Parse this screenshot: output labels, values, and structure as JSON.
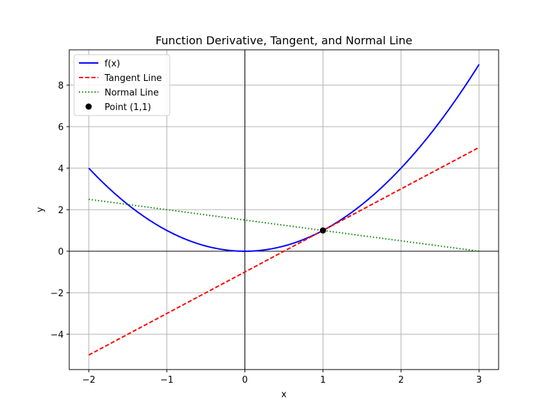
{
  "chart_data": {
    "type": "line",
    "title": "Function Derivative, Tangent, and Normal Line",
    "xlabel": "x",
    "ylabel": "y",
    "xlim": [
      -2.25,
      3.25
    ],
    "ylim": [
      -5.7,
      9.7
    ],
    "xticks": [
      -2,
      -1,
      0,
      1,
      2,
      3
    ],
    "xtick_labels": [
      "−2",
      "−1",
      "0",
      "1",
      "2",
      "3"
    ],
    "yticks": [
      -4,
      -2,
      0,
      2,
      4,
      6,
      8
    ],
    "ytick_labels": [
      "−4",
      "−2",
      "0",
      "2",
      "4",
      "6",
      "8"
    ],
    "grid": true,
    "legend_position": "upper-left",
    "series": [
      {
        "name": "f(x)",
        "kind": "line",
        "color": "#0000ff",
        "linestyle": "solid",
        "x": [
          -2.0,
          -1.75,
          -1.5,
          -1.25,
          -1.0,
          -0.75,
          -0.5,
          -0.25,
          0.0,
          0.25,
          0.5,
          0.75,
          1.0,
          1.25,
          1.5,
          1.75,
          2.0,
          2.25,
          2.5,
          2.75,
          3.0
        ],
        "y": [
          4.0,
          3.0625,
          2.25,
          1.5625,
          1.0,
          0.5625,
          0.25,
          0.0625,
          0.0,
          0.0625,
          0.25,
          0.5625,
          1.0,
          1.5625,
          2.25,
          3.0625,
          4.0,
          5.0625,
          6.25,
          7.5625,
          9.0
        ]
      },
      {
        "name": "Tangent Line",
        "kind": "line",
        "color": "#ff0000",
        "linestyle": "dashed",
        "x": [
          -2.0,
          3.0
        ],
        "y": [
          -5.0,
          5.0
        ]
      },
      {
        "name": "Normal Line",
        "kind": "line",
        "color": "#008000",
        "linestyle": "dotted",
        "x": [
          -2.0,
          3.0
        ],
        "y": [
          2.5,
          0.0
        ]
      },
      {
        "name": "Point (1,1)",
        "kind": "scatter",
        "color": "#000000",
        "x": [
          1.0
        ],
        "y": [
          1.0
        ]
      }
    ]
  }
}
